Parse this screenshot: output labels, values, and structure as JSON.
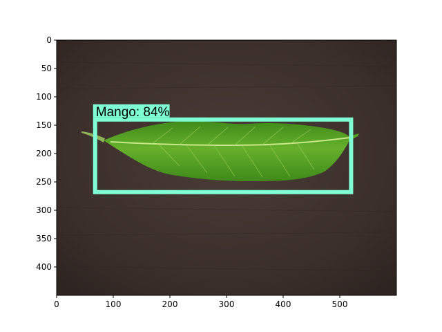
{
  "plot": {
    "image_width": 600,
    "image_height": 450,
    "x_ticks": [
      0,
      100,
      200,
      300,
      400,
      500
    ],
    "y_ticks": [
      0,
      50,
      100,
      150,
      200,
      250,
      300,
      350,
      400
    ],
    "background_color": "#3d302c",
    "frame_color": "#000000"
  },
  "detection": {
    "label": "Mango: 84%",
    "box_data": {
      "x_min": 68,
      "y_min": 140,
      "x_max": 520,
      "y_max": 268
    },
    "box_color": "#7fffd4",
    "box_line_width": 6
  },
  "leaf": {
    "color_dark": "#3f8a1a",
    "color_mid": "#66b02c",
    "color_light": "#9fd25a",
    "vein_color": "#c9e88a"
  }
}
